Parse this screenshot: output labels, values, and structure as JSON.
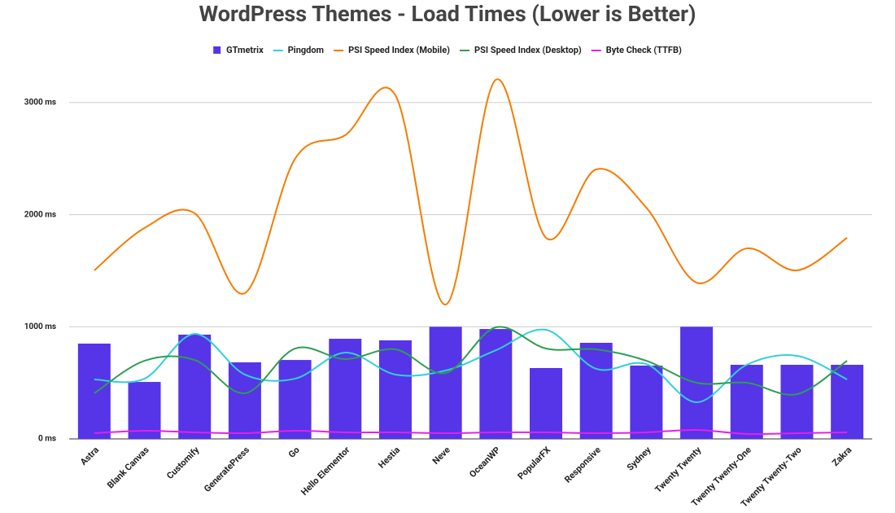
{
  "chart_data": {
    "type": "bar_line",
    "title": "WordPress Themes - Load Times (Lower is Better)",
    "categories": [
      "Astra",
      "Blank Canvas",
      "Customify",
      "GeneratePress",
      "Go",
      "Hello Elementor",
      "Hestia",
      "Neve",
      "OceanWP",
      "PopularFX",
      "Responsive",
      "Sydney",
      "Twenty Twenty",
      "Twenty Twenty-One",
      "Twenty Twenty-Two",
      "Zakra"
    ],
    "series": [
      {
        "name": "GTmetrix",
        "type": "bar",
        "color": "#5634e8",
        "values": [
          850,
          508,
          930,
          683,
          704,
          893,
          879,
          1000,
          980,
          632,
          857,
          654,
          1000,
          661,
          661,
          661
        ]
      },
      {
        "name": "Pingdom",
        "type": "line",
        "color": "#2fd0dc",
        "values": [
          530,
          537,
          937,
          574,
          537,
          770,
          574,
          610,
          790,
          973,
          625,
          668,
          327,
          661,
          741,
          530
        ]
      },
      {
        "name": "PSI Speed Index (Mobile)",
        "type": "line",
        "color": "#f57c00",
        "values": [
          1503,
          1881,
          2012,
          1300,
          2498,
          2709,
          3065,
          1198,
          3203,
          1794,
          2404,
          2062,
          1394,
          1699,
          1503,
          1794
        ]
      },
      {
        "name": "PSI Speed Index (Desktop)",
        "type": "line",
        "color": "#2e9e4f",
        "values": [
          407,
          697,
          704,
          407,
          806,
          712,
          799,
          588,
          995,
          806,
          799,
          697,
          501,
          501,
          399,
          697
        ]
      },
      {
        "name": "Byte Check (TTFB)",
        "type": "line",
        "color": "#e81ee8",
        "values": [
          51,
          73,
          58,
          51,
          73,
          58,
          58,
          51,
          58,
          58,
          51,
          58,
          80,
          44,
          51,
          58
        ]
      }
    ],
    "ylim": [
      0,
      3250
    ],
    "yticks": [
      {
        "value": 0,
        "label": "0 ms"
      },
      {
        "value": 1000,
        "label": "1000 ms"
      },
      {
        "value": 2000,
        "label": "2000 ms"
      },
      {
        "value": 3000,
        "label": "3000 ms"
      }
    ],
    "grid": true,
    "legend": "top"
  }
}
